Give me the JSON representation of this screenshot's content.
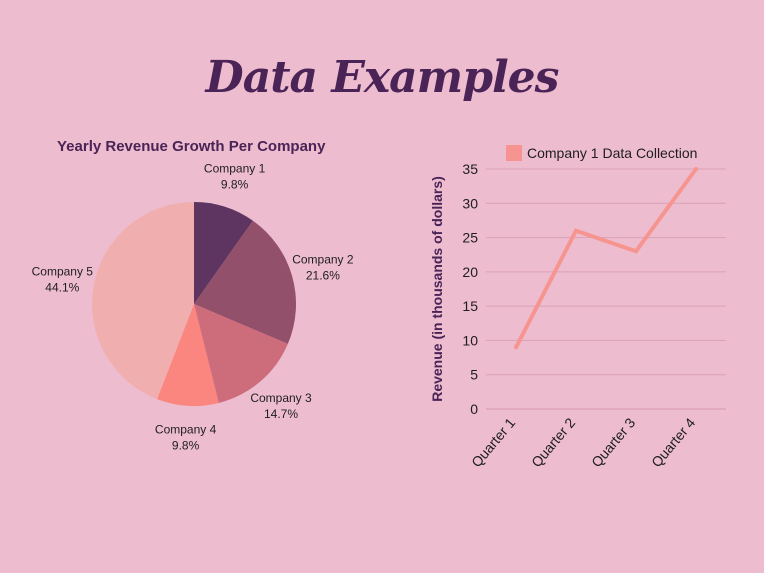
{
  "header": {
    "title": "Data Examples"
  },
  "colors": {
    "background": "#eebccf",
    "title": "#4a2456",
    "line": "#f6958f",
    "grid": "#d9a0b8",
    "slices": [
      "#5e3561",
      "#92506a",
      "#cd6c7b",
      "#fb867f",
      "#f0aeae"
    ]
  },
  "chart_data": [
    {
      "type": "pie",
      "title": "Yearly Revenue Growth Per Company",
      "categories": [
        "Company 1",
        "Company 2",
        "Company 3",
        "Company 4",
        "Company 5"
      ],
      "values": [
        9.8,
        21.6,
        14.7,
        9.8,
        44.1
      ],
      "value_labels": [
        "9.8%",
        "21.6%",
        "14.7%",
        "9.8%",
        "44.1%"
      ],
      "labels_outside": true
    },
    {
      "type": "line",
      "categories": [
        "Quarter 1",
        "Quarter 2",
        "Quarter 3",
        "Quarter 4"
      ],
      "series": [
        {
          "name": "Company 1 Data Collection",
          "values": [
            9,
            26,
            23,
            35
          ]
        }
      ],
      "xlabel": "",
      "ylabel": "Revenue (in thousands of dollars)",
      "ylim": [
        0,
        35
      ],
      "yticks": [
        0,
        5,
        10,
        15,
        20,
        25,
        30,
        35
      ],
      "grid": "horizontal",
      "legend": "top"
    }
  ]
}
